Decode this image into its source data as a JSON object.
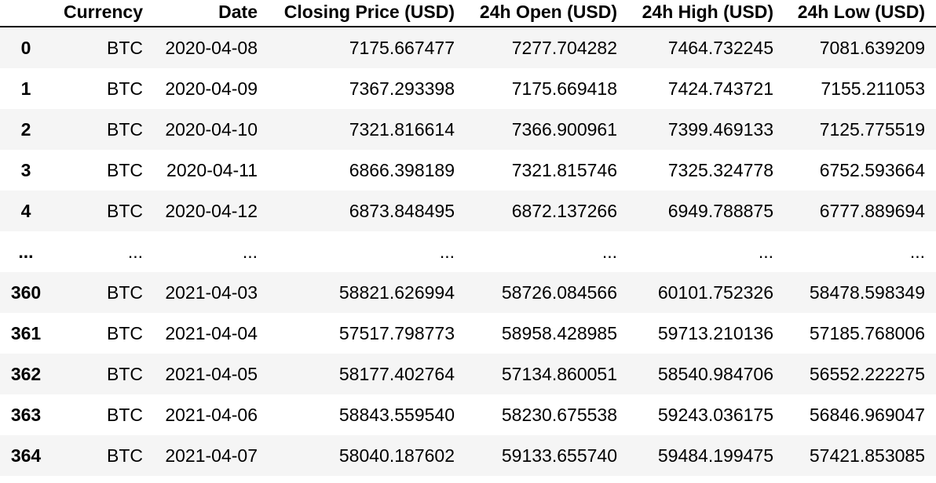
{
  "table": {
    "columns": [
      "",
      "Currency",
      "Date",
      "Closing Price (USD)",
      "24h Open (USD)",
      "24h High (USD)",
      "24h Low (USD)"
    ],
    "rows": [
      [
        "0",
        "BTC",
        "2020-04-08",
        "7175.667477",
        "7277.704282",
        "7464.732245",
        "7081.639209"
      ],
      [
        "1",
        "BTC",
        "2020-04-09",
        "7367.293398",
        "7175.669418",
        "7424.743721",
        "7155.211053"
      ],
      [
        "2",
        "BTC",
        "2020-04-10",
        "7321.816614",
        "7366.900961",
        "7399.469133",
        "7125.775519"
      ],
      [
        "3",
        "BTC",
        "2020-04-11",
        "6866.398189",
        "7321.815746",
        "7325.324778",
        "6752.593664"
      ],
      [
        "4",
        "BTC",
        "2020-04-12",
        "6873.848495",
        "6872.137266",
        "6949.788875",
        "6777.889694"
      ],
      [
        "...",
        "...",
        "...",
        "...",
        "...",
        "...",
        "..."
      ],
      [
        "360",
        "BTC",
        "2021-04-03",
        "58821.626994",
        "58726.084566",
        "60101.752326",
        "58478.598349"
      ],
      [
        "361",
        "BTC",
        "2021-04-04",
        "57517.798773",
        "58958.428985",
        "59713.210136",
        "57185.768006"
      ],
      [
        "362",
        "BTC",
        "2021-04-05",
        "58177.402764",
        "57134.860051",
        "58540.984706",
        "56552.222275"
      ],
      [
        "363",
        "BTC",
        "2021-04-06",
        "58843.559540",
        "58230.675538",
        "59243.036175",
        "56846.969047"
      ],
      [
        "364",
        "BTC",
        "2021-04-07",
        "58040.187602",
        "59133.655740",
        "59484.199475",
        "57421.853085"
      ]
    ]
  }
}
